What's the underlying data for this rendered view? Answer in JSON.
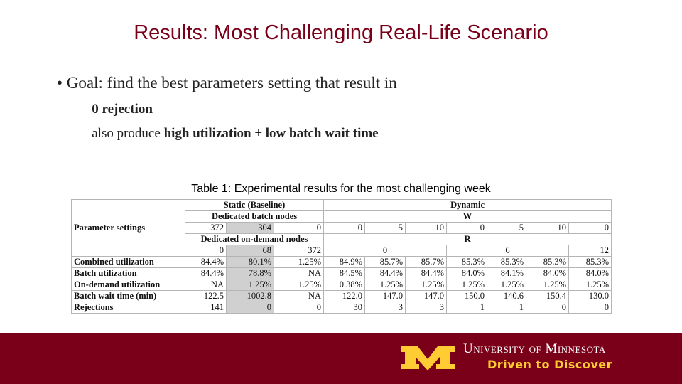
{
  "title": "Results: Most Challenging Real-Life Scenario",
  "bullet": "Goal: find the best parameters setting that result in",
  "subbullets": [
    {
      "parts": [
        "0 rejection"
      ]
    },
    {
      "parts": [
        "also produce",
        "high utilization",
        "+",
        "low batch wait time"
      ]
    }
  ],
  "table": {
    "caption": "Table 1: Experimental results for the most challenging week",
    "row_header": "Parameter settings",
    "groups": [
      "Static (Baseline)",
      "Dynamic"
    ],
    "batch_label": "Dedicated batch nodes",
    "w_label": "W",
    "batch_nodes": [
      "372",
      "304",
      "0",
      "0",
      "5",
      "10",
      "0",
      "5",
      "10",
      "0"
    ],
    "ondemand_label": "Dedicated on-demand nodes",
    "r_label": "R",
    "ondemand_nodes": [
      "0",
      "68",
      "372",
      "0",
      "6",
      "12"
    ],
    "rows": [
      {
        "label": "Combined utilization",
        "values": [
          "84.4%",
          "80.1%",
          "1.25%",
          "84.9%",
          "85.7%",
          "85.7%",
          "85.3%",
          "85.3%",
          "85.3%",
          "85.3%"
        ]
      },
      {
        "label": "Batch utilization",
        "values": [
          "84.4%",
          "78.8%",
          "NA",
          "84.5%",
          "84.4%",
          "84.4%",
          "84.0%",
          "84.1%",
          "84.0%",
          "84.0%"
        ]
      },
      {
        "label": "On-demand utilization",
        "values": [
          "NA",
          "1.25%",
          "1.25%",
          "0.38%",
          "1.25%",
          "1.25%",
          "1.25%",
          "1.25%",
          "1.25%",
          "1.25%"
        ]
      },
      {
        "label": "Batch wait time (min)",
        "values": [
          "122.5",
          "1002.8",
          "NA",
          "122.0",
          "147.0",
          "147.0",
          "150.0",
          "140.6",
          "150.4",
          "130.0"
        ]
      },
      {
        "label": "Rejections",
        "values": [
          "141",
          "0",
          "0",
          "30",
          "3",
          "3",
          "1",
          "1",
          "0",
          "0"
        ]
      }
    ]
  },
  "footer": {
    "university": "University of Minnesota",
    "tagline": "Driven to Discover"
  }
}
